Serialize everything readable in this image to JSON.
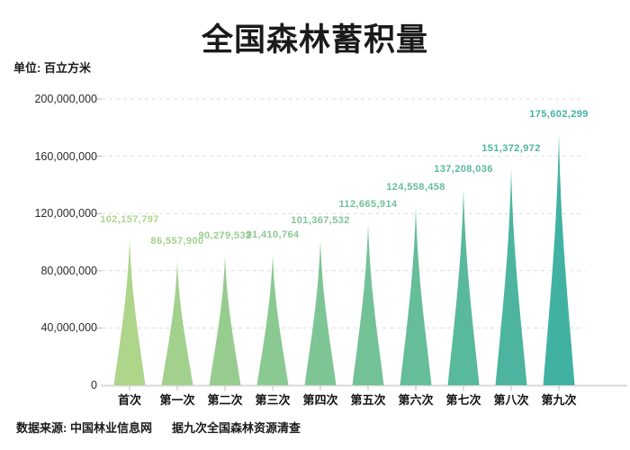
{
  "chart_data": {
    "type": "bar",
    "bar_style": "cone",
    "title": "全国森林蓄积量",
    "unit_label": "单位: 百立方米",
    "categories": [
      "首次",
      "第一次",
      "第二次",
      "第三次",
      "第四次",
      "第五次",
      "第六次",
      "第七次",
      "第八次",
      "第九次"
    ],
    "values": [
      102157797,
      86557900,
      90279532,
      91410764,
      101367532,
      112665914,
      124558458,
      137208036,
      151372972,
      175602299
    ],
    "value_labels": [
      "102,157,797",
      "86,557,900",
      "90,279,532",
      "91,410,764",
      "101,367,532",
      "112,665,914",
      "124,558,458",
      "137,208,036",
      "151,372,972",
      "175,602,299"
    ],
    "ylim": [
      0,
      200000000
    ],
    "ytick_labels": [
      "0",
      "40,000,000",
      "80,000,000",
      "120,000,000",
      "160,000,000",
      "200,000,000"
    ],
    "grid": "horizontal-dashed",
    "legend": "none",
    "bar_colors": [
      "#aed58a",
      "#a2d18d",
      "#96cd8f",
      "#8ac992",
      "#7ec595",
      "#72c197",
      "#65bd9a",
      "#59b99d",
      "#4db59f",
      "#41b2a2"
    ],
    "axis_colors": {
      "grid": "#dddddd",
      "baseline": "#d9d9d9",
      "tick": "#bbbbbb"
    },
    "source_note": {
      "part1": "数据来源: 中国林业信息网",
      "part2": "据九次全国森林资源清查"
    }
  }
}
